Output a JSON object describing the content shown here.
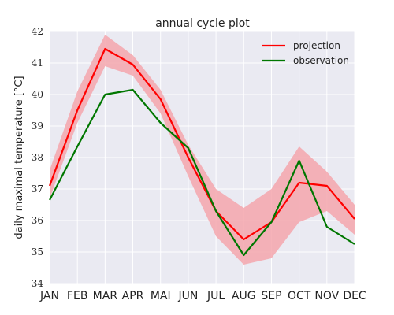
{
  "chart_data": {
    "type": "line",
    "title": "annual cycle plot",
    "xlabel": "",
    "ylabel": "daily maximal temperature [°C]",
    "categories": [
      "JAN",
      "FEB",
      "MAR",
      "APR",
      "MAI",
      "JUN",
      "JUL",
      "AUG",
      "SEP",
      "OCT",
      "NOV",
      "DEC"
    ],
    "ylim": [
      34,
      42
    ],
    "yticks": [
      34,
      35,
      36,
      37,
      38,
      39,
      40,
      41,
      42
    ],
    "grid": true,
    "legend_position": "top-right",
    "series": [
      {
        "name": "projection",
        "color": "#ff0000",
        "values": [
          37.1,
          39.5,
          41.45,
          40.95,
          39.85,
          38.0,
          36.3,
          35.4,
          35.95,
          37.2,
          37.1,
          36.05
        ],
        "band_lower": [
          36.7,
          39.1,
          40.9,
          40.6,
          39.4,
          37.4,
          35.5,
          34.6,
          34.8,
          35.95,
          36.3,
          35.55
        ],
        "band_upper": [
          37.6,
          40.1,
          41.9,
          41.25,
          40.15,
          38.4,
          37.0,
          36.4,
          37.0,
          38.35,
          37.55,
          36.5
        ],
        "band_color": "#f4a6ad"
      },
      {
        "name": "observation",
        "color": "#007700",
        "values": [
          36.65,
          38.35,
          40.0,
          40.15,
          39.1,
          38.3,
          36.3,
          34.9,
          35.95,
          37.9,
          35.8,
          35.25
        ]
      }
    ]
  }
}
